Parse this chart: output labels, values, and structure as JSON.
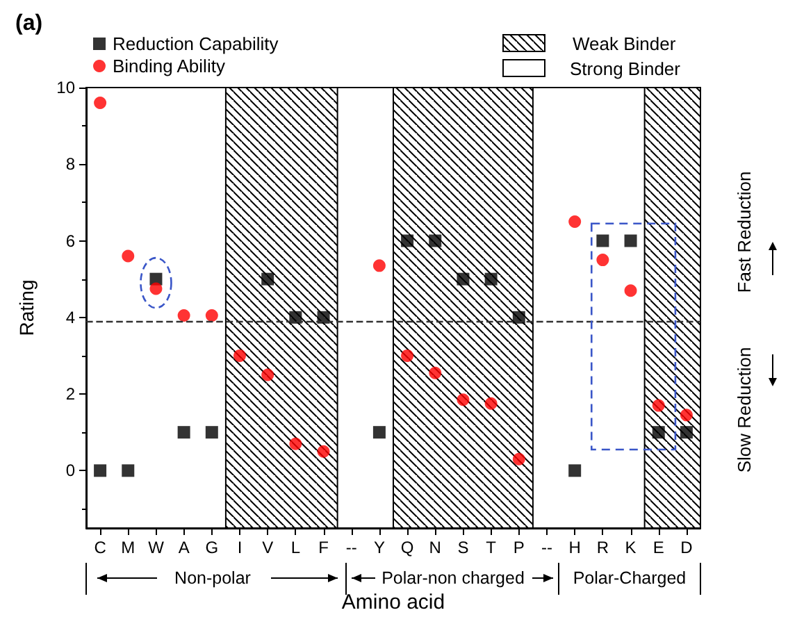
{
  "chart_data": {
    "type": "scatter",
    "title": "(a)",
    "xlabel": "Amino acid",
    "ylabel": "Rating",
    "categories": [
      "C",
      "M",
      "W",
      "A",
      "G",
      "I",
      "V",
      "L",
      "F",
      "--",
      "Y",
      "Q",
      "N",
      "S",
      "T",
      "P",
      "--",
      "H",
      "R",
      "K",
      "E",
      "D"
    ],
    "series": [
      {
        "name": "Reduction Capability",
        "color": "#000000",
        "marker": "square",
        "values": [
          0,
          0,
          5,
          1,
          1,
          null,
          5,
          4,
          4,
          null,
          1,
          6,
          6,
          5,
          5,
          4,
          null,
          0,
          6,
          6,
          1,
          1
        ]
      },
      {
        "name": "Binding Ability",
        "color": "#ff0000",
        "marker": "circle",
        "values": [
          9.6,
          5.6,
          4.75,
          4.05,
          4.05,
          3.0,
          2.5,
          0.7,
          0.5,
          null,
          5.35,
          3.0,
          2.55,
          1.85,
          1.75,
          0.3,
          null,
          6.5,
          5.5,
          4.7,
          1.7,
          1.45
        ]
      }
    ],
    "ylim": [
      -1.5,
      10
    ],
    "yticks": [
      0,
      2,
      4,
      6,
      8,
      10
    ],
    "ref_lines": [
      {
        "axis": "y",
        "value": 3.9,
        "line_style": "dashed"
      }
    ],
    "bands": [
      {
        "axis": "x",
        "from": "I",
        "to": "F",
        "label": "Weak Binder"
      },
      {
        "axis": "x",
        "from": "Q",
        "to": "P"
      },
      {
        "axis": "x",
        "from": "E",
        "to": "D"
      }
    ],
    "annotations": [
      "Strong Binder",
      "Fast Reduction",
      "Slow Reduction",
      "Non-polar",
      "Polar-non charged",
      "Polar-Charged"
    ],
    "legend": "top left",
    "grid": false
  }
}
